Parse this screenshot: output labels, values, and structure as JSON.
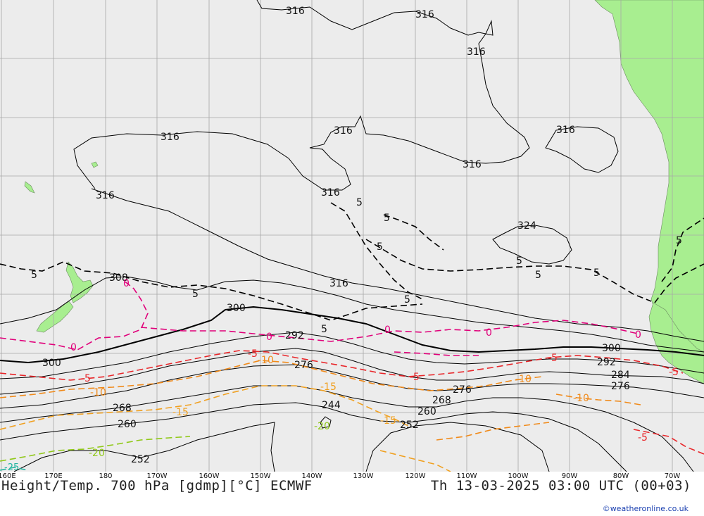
{
  "title": "Height/Temp. 700 hPa [gdmp][°C] ECMWF",
  "valid_time": "Th 13-03-2025 03:00 UTC (00+03)",
  "credit": "©weatheronline.co.uk",
  "colors": {
    "ocean": "#ececec",
    "land": "#a8ee90",
    "grid": "#a8a8a8",
    "height_contour": "#000000",
    "temp_0": "#e0007a",
    "temp_minus5": "#e8262a",
    "temp_minus10": "#f08a1a",
    "temp_minus15": "#f0a020",
    "temp_minus20": "#90c818",
    "temp_minus25": "#22b4a0"
  },
  "longitude_labels": [
    "160E",
    "170E",
    "180",
    "170W",
    "160W",
    "150W",
    "140W",
    "130W",
    "120W",
    "110W",
    "100W",
    "90W",
    "80W",
    "70W"
  ],
  "height_labels": {
    "h316_a": "316",
    "h316_b": "316",
    "h316_c": "316",
    "h316_d": "316",
    "h316_e": "316",
    "h316_f": "316",
    "h316_g": "316",
    "h316_h": "316",
    "h316_i": "316",
    "h316_j": "316",
    "h324": "324",
    "h308": "308",
    "h300_a": "300",
    "h300_b": "300",
    "h300_c": "300",
    "h292_a": "292",
    "h292_b": "292",
    "h284": "284",
    "h276_a": "276",
    "h276_b": "276",
    "h276_c": "276",
    "h268_a": "268",
    "h268_b": "268",
    "h260_a": "260",
    "h260_b": "260",
    "h252_a": "252",
    "h252_b": "252",
    "h244": "244"
  },
  "temperature_labels": {
    "t5_a": "5",
    "t5_b": "5",
    "t5_c": "5",
    "t5_d": "5",
    "t5_e": "5",
    "t5_f": "5",
    "t5_g": "5",
    "t5_h": "5",
    "t5_i": "5",
    "t5_j": "5",
    "t5_k": "5",
    "t0_a": "0",
    "t0_b": "0",
    "t0_c": "0",
    "t0_d": "0",
    "t0_e": "0",
    "t0_f": "0",
    "tm5_a": "-5",
    "tm5_b": "-5",
    "tm5_c": "-5",
    "tm5_d": "-5",
    "tm5_e": "-5",
    "tm5_f": "-5",
    "tm10_a": "-10",
    "tm10_b": "-10",
    "tm10_c": "-10",
    "tm10_d": "-10",
    "tm15_a": "-15",
    "tm15_b": "-15",
    "tm15_c": "-15",
    "tm20_a": "-20",
    "tm20_b": "-20",
    "tm25": "-25"
  }
}
